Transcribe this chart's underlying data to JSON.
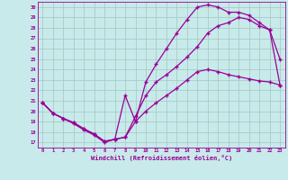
{
  "xlabel": "Windchill (Refroidissement éolien,°C)",
  "xlim": [
    -0.5,
    23.5
  ],
  "ylim": [
    16.5,
    30.5
  ],
  "xticks": [
    0,
    1,
    2,
    3,
    4,
    5,
    6,
    7,
    8,
    9,
    10,
    11,
    12,
    13,
    14,
    15,
    16,
    17,
    18,
    19,
    20,
    21,
    22,
    23
  ],
  "yticks": [
    17,
    18,
    19,
    20,
    21,
    22,
    23,
    24,
    25,
    26,
    27,
    28,
    29,
    30
  ],
  "bg_color": "#c8eaea",
  "grid_color": "#a0c8c0",
  "line_color": "#990099",
  "line1_y": [
    20.8,
    19.8,
    19.3,
    18.8,
    18.2,
    17.7,
    17.0,
    17.3,
    17.5,
    19.0,
    20.0,
    20.8,
    21.5,
    22.2,
    23.0,
    23.8,
    24.0,
    23.8,
    23.5,
    23.3,
    23.1,
    22.9,
    22.8,
    22.5
  ],
  "line2_y": [
    20.8,
    19.8,
    19.3,
    18.9,
    18.3,
    17.8,
    17.1,
    17.3,
    17.5,
    19.5,
    21.5,
    22.8,
    23.5,
    24.3,
    25.2,
    26.2,
    27.5,
    28.2,
    28.5,
    29.0,
    28.8,
    28.2,
    27.8,
    25.0
  ],
  "line3_y": [
    20.8,
    19.8,
    19.3,
    18.9,
    18.3,
    17.8,
    17.1,
    17.3,
    21.5,
    19.0,
    22.8,
    24.5,
    26.0,
    27.5,
    28.8,
    30.0,
    30.2,
    30.0,
    29.5,
    29.5,
    29.2,
    28.5,
    27.8,
    22.5
  ],
  "marker": "+",
  "markersize": 3,
  "linewidth": 0.9
}
